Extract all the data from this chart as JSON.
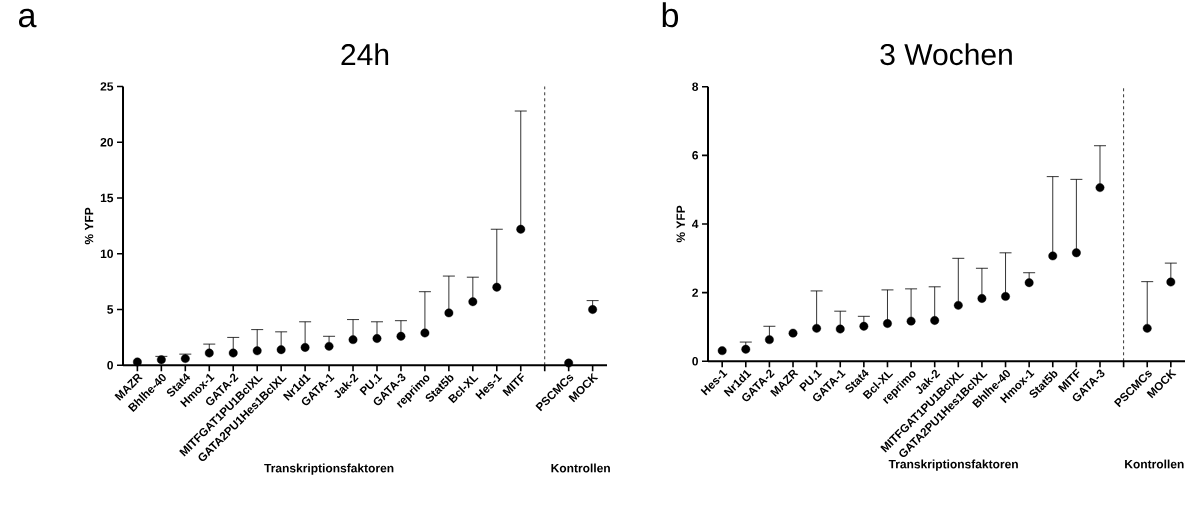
{
  "chart_data": [
    {
      "type": "scatter",
      "title": "24h",
      "ylabel": "% YFP",
      "categories": [
        "MAZR",
        "Bhlhe-40",
        "Stat4",
        "Hmox-1",
        "GATA-2",
        "MITFGAT1PU1BclXL",
        "GATA2PU1Hes1BclXL",
        "Nr1d1",
        "GATA-1",
        "Jak-2",
        "PU.1",
        "GATA-3",
        "reprimo",
        "Stat5b",
        "Bcl-XL",
        "Hes-1",
        "MITF",
        null,
        "PSCMCs",
        "MOCK"
      ],
      "values": [
        0.3,
        0.5,
        0.6,
        1.1,
        1.1,
        1.3,
        1.4,
        1.6,
        1.7,
        2.3,
        2.4,
        2.6,
        2.9,
        4.7,
        5.7,
        7.0,
        12.2,
        null,
        0.2,
        5.0
      ],
      "errors": [
        null,
        [
          0.5,
          0.8
        ],
        [
          0.6,
          1.0
        ],
        [
          1.1,
          1.9
        ],
        [
          1.1,
          2.5
        ],
        [
          1.3,
          3.2
        ],
        [
          1.4,
          3.0
        ],
        [
          1.6,
          3.9
        ],
        [
          1.7,
          2.6
        ],
        [
          2.3,
          4.1
        ],
        [
          2.4,
          3.9
        ],
        [
          2.6,
          4.0
        ],
        [
          2.9,
          6.6
        ],
        [
          4.7,
          8.0
        ],
        [
          5.7,
          7.9
        ],
        [
          7.0,
          12.2
        ],
        [
          12.2,
          22.8
        ],
        null,
        null,
        [
          5.0,
          5.8
        ]
      ],
      "color": "#000000",
      "marker": "circle",
      "ylim": [
        0,
        25
      ],
      "yticks": [
        0,
        5,
        10,
        15,
        20,
        25
      ],
      "annotations": [
        "a",
        "Transkriptionsfaktoren",
        "Kontrollen"
      ]
    },
    {
      "type": "scatter",
      "title": "3 Wochen",
      "ylabel": "% YFP",
      "categories": [
        "Hes-1",
        "Nr1d1",
        "GATA-2",
        "MAZR",
        "PU.1",
        "GATA-1",
        "Stat4",
        "Bcl-XL",
        "reprimo",
        "Jak-2",
        "MITFGAT1PU1BclXL",
        "GATA2PU1Hes1BclXL",
        "Bhlhe-40",
        "Hmox-1",
        "Stat5b",
        "MITF",
        "GATA-3",
        null,
        "PSCMCs",
        "MOCK"
      ],
      "values": [
        0.31,
        0.35,
        0.63,
        0.82,
        0.96,
        0.94,
        1.02,
        1.1,
        1.17,
        1.19,
        1.63,
        1.83,
        1.89,
        2.29,
        3.07,
        3.16,
        5.06,
        null,
        0.96,
        2.31
      ],
      "errors": [
        null,
        [
          0.35,
          0.56
        ],
        [
          0.63,
          1.02
        ],
        null,
        [
          0.96,
          2.05
        ],
        [
          0.94,
          1.46
        ],
        [
          1.02,
          1.31
        ],
        [
          1.1,
          2.08
        ],
        [
          1.17,
          2.11
        ],
        [
          1.19,
          2.17
        ],
        [
          1.63,
          3.0
        ],
        [
          1.83,
          2.71
        ],
        [
          1.89,
          3.16
        ],
        [
          2.29,
          2.58
        ],
        [
          3.07,
          5.38
        ],
        [
          3.16,
          5.3
        ],
        [
          5.06,
          6.28
        ],
        null,
        [
          0.96,
          2.32
        ],
        [
          2.31,
          2.86
        ]
      ],
      "color": "#000000",
      "marker": "circle",
      "ylim": [
        0,
        8
      ],
      "yticks": [
        0,
        2,
        4,
        6,
        8
      ],
      "annotations": [
        "b",
        "Transkriptionsfaktoren",
        "Kontrollen"
      ]
    }
  ]
}
